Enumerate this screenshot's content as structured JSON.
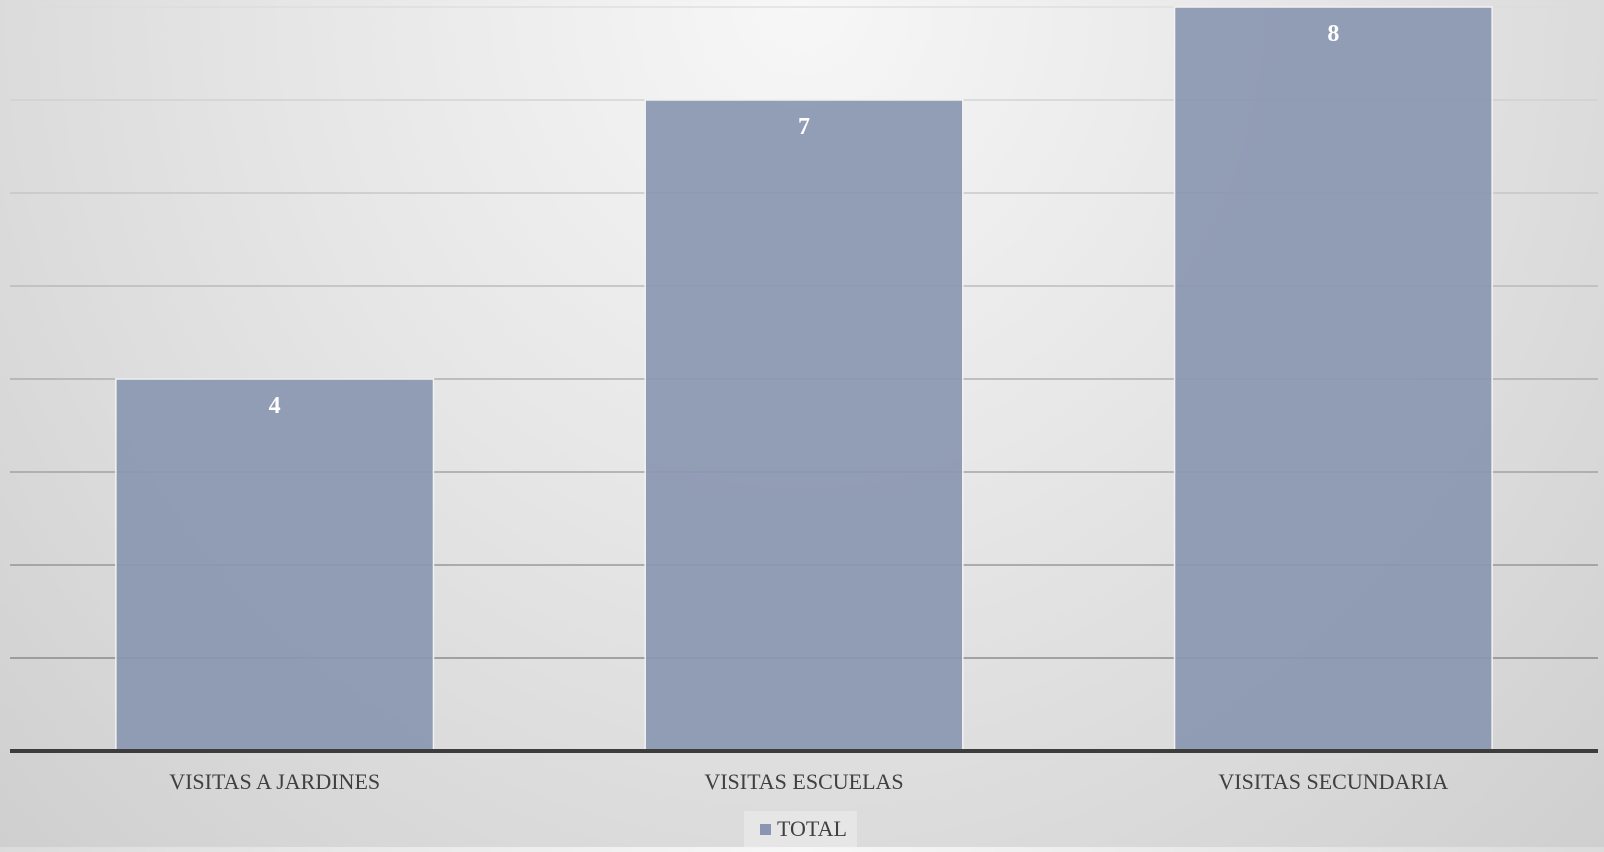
{
  "chart_data": {
    "type": "bar",
    "categories": [
      "VISITAS A JARDINES",
      "VISITAS ESCUELAS",
      "VISITAS SECUNDARIA"
    ],
    "series": [
      {
        "name": "TOTAL",
        "values": [
          4,
          7,
          8
        ],
        "color": "#8a96b1"
      }
    ],
    "ylim": [
      0,
      8
    ],
    "grid": true,
    "legend": "bottom",
    "data_labels": true
  }
}
